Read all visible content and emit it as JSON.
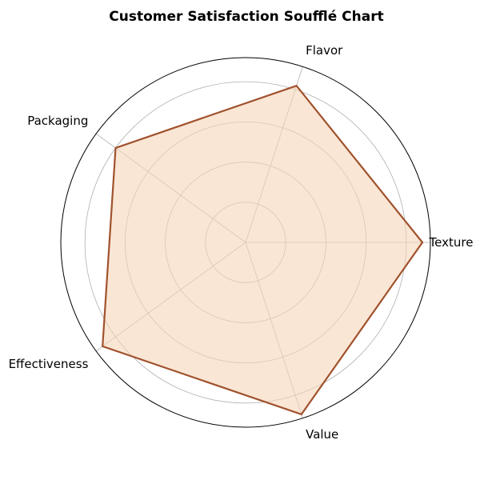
{
  "chart_data": {
    "type": "radar",
    "title": "Customer Satisfaction Soufflé Chart",
    "categories": [
      "Texture",
      "Flavor",
      "Packaging",
      "Effectiveness",
      "Value"
    ],
    "series": [
      {
        "values": [
          4.4,
          4.1,
          4.0,
          4.4,
          4.5
        ]
      }
    ],
    "rlim": [
      0,
      4.6
    ],
    "rgrid": [
      1,
      2,
      3,
      4
    ],
    "grid": true,
    "colors": {
      "line": "#a0522d",
      "fill": "#f6d5b8",
      "grid": "#b0b0b0",
      "frame": "#000000"
    }
  }
}
